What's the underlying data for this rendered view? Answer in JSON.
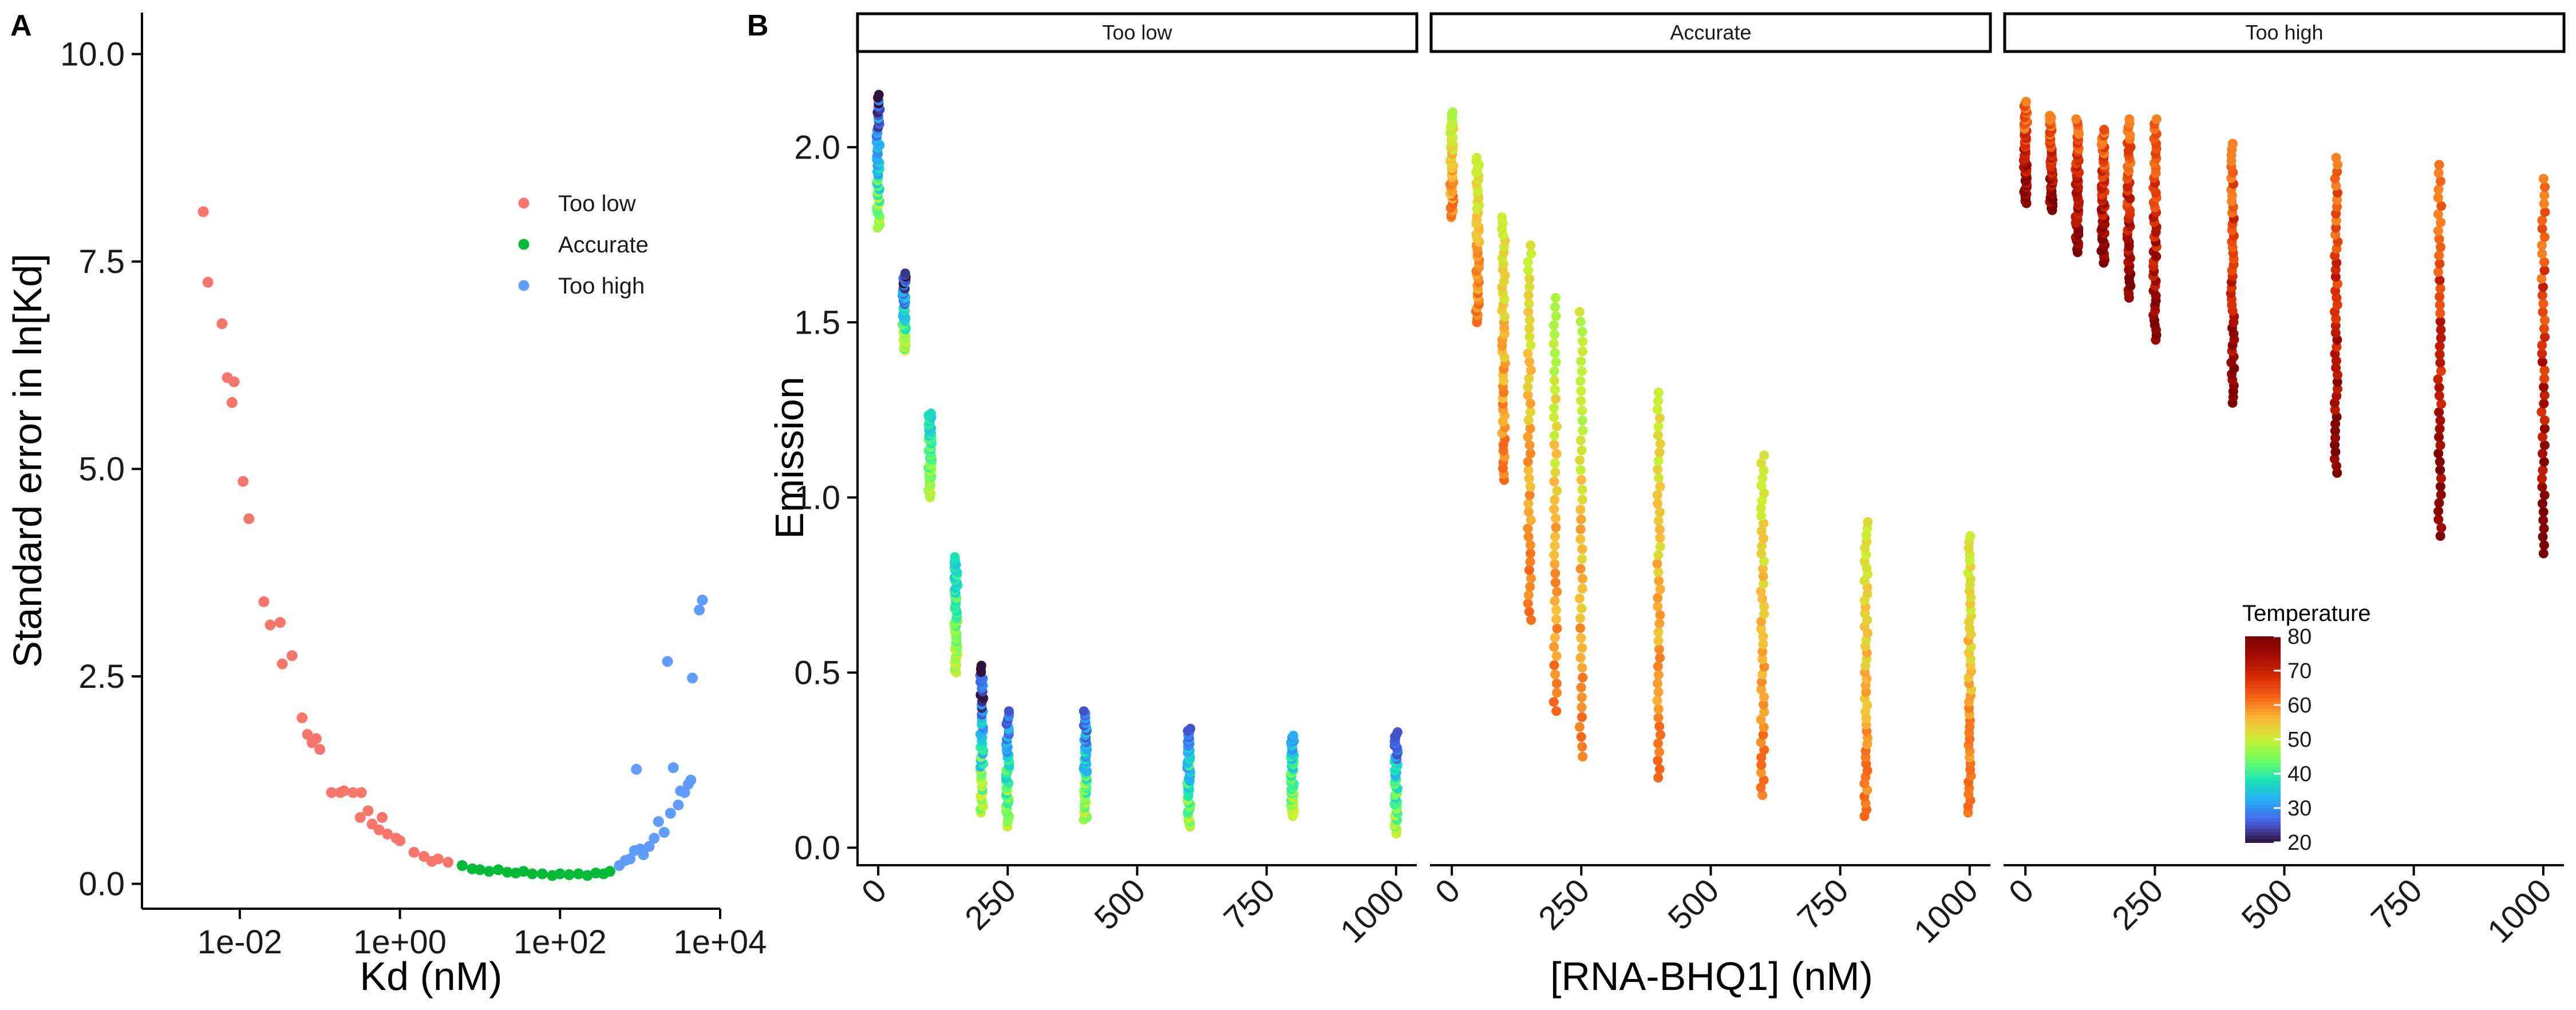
{
  "panel_labels": {
    "a": "A",
    "b": "B"
  },
  "chart_data": [
    {
      "type": "scatter",
      "panel": "A",
      "xlabel": "Kd (nM)",
      "ylabel": "Standard error in ln[Kd]",
      "x_scale": "log10",
      "xlim": [
        0.0006,
        10000
      ],
      "ylim": [
        -0.3,
        10.5
      ],
      "x_ticks": [
        0.01,
        1,
        100,
        10000
      ],
      "x_tick_labels": [
        "1e-02",
        "1e+00",
        "1e+02",
        "1e+04"
      ],
      "y_ticks": [
        0,
        2.5,
        5,
        7.5,
        10
      ],
      "y_tick_labels": [
        "0.0",
        "2.5",
        "5.0",
        "7.5",
        "10.0"
      ],
      "legend_position": "top-right",
      "series": [
        {
          "name": "Too low",
          "color": "#F8766D",
          "points": [
            [
              0.0035,
              8.1
            ],
            [
              0.004,
              7.25
            ],
            [
              0.006,
              6.75
            ],
            [
              0.007,
              6.1
            ],
            [
              0.0085,
              6.05
            ],
            [
              0.008,
              5.8
            ],
            [
              0.011,
              4.85
            ],
            [
              0.013,
              4.4
            ],
            [
              0.02,
              3.4
            ],
            [
              0.024,
              3.12
            ],
            [
              0.032,
              3.15
            ],
            [
              0.034,
              2.65
            ],
            [
              0.045,
              2.75
            ],
            [
              0.06,
              2.0
            ],
            [
              0.07,
              1.8
            ],
            [
              0.08,
              1.7
            ],
            [
              0.09,
              1.75
            ],
            [
              0.1,
              1.62
            ],
            [
              0.14,
              1.1
            ],
            [
              0.18,
              1.1
            ],
            [
              0.2,
              1.12
            ],
            [
              0.26,
              1.1
            ],
            [
              0.33,
              1.1
            ],
            [
              0.32,
              0.8
            ],
            [
              0.4,
              0.88
            ],
            [
              0.45,
              0.72
            ],
            [
              0.55,
              0.65
            ],
            [
              0.6,
              0.8
            ],
            [
              0.7,
              0.6
            ],
            [
              0.9,
              0.55
            ],
            [
              1.0,
              0.52
            ],
            [
              1.5,
              0.38
            ],
            [
              2.0,
              0.33
            ],
            [
              2.5,
              0.27
            ],
            [
              3.0,
              0.3
            ],
            [
              4.0,
              0.26
            ]
          ]
        },
        {
          "name": "Accurate",
          "color": "#00BA38",
          "points": [
            [
              6,
              0.22
            ],
            [
              8,
              0.18
            ],
            [
              10,
              0.17
            ],
            [
              13,
              0.15
            ],
            [
              17,
              0.17
            ],
            [
              22,
              0.14
            ],
            [
              28,
              0.13
            ],
            [
              35,
              0.15
            ],
            [
              45,
              0.12
            ],
            [
              60,
              0.12
            ],
            [
              80,
              0.1
            ],
            [
              100,
              0.12
            ],
            [
              130,
              0.11
            ],
            [
              170,
              0.12
            ],
            [
              220,
              0.1
            ],
            [
              280,
              0.13
            ],
            [
              350,
              0.12
            ],
            [
              420,
              0.15
            ]
          ]
        },
        {
          "name": "Too high",
          "color": "#619CFF",
          "points": [
            [
              550,
              0.22
            ],
            [
              650,
              0.28
            ],
            [
              750,
              0.3
            ],
            [
              850,
              0.4
            ],
            [
              900,
              1.38
            ],
            [
              1000,
              0.42
            ],
            [
              1100,
              0.35
            ],
            [
              1300,
              0.45
            ],
            [
              1500,
              0.55
            ],
            [
              1700,
              0.75
            ],
            [
              2000,
              0.62
            ],
            [
              2200,
              2.68
            ],
            [
              2400,
              0.85
            ],
            [
              2600,
              1.4
            ],
            [
              3000,
              0.95
            ],
            [
              3200,
              1.12
            ],
            [
              3600,
              1.1
            ],
            [
              4000,
              1.2
            ],
            [
              4300,
              1.25
            ],
            [
              4500,
              2.48
            ],
            [
              5500,
              3.3
            ],
            [
              6000,
              3.42
            ]
          ]
        }
      ]
    },
    {
      "type": "scatter",
      "panel": "B",
      "xlabel": "[RNA-BHQ1] (nM)",
      "ylabel": "Emission",
      "xlim": [
        -40,
        1040
      ],
      "ylim": [
        -0.05,
        2.27
      ],
      "x_ticks": [
        0,
        250,
        500,
        750,
        1000
      ],
      "x_tick_labels": [
        "0",
        "250",
        "500",
        "750",
        "1000"
      ],
      "y_ticks": [
        0,
        0.5,
        1,
        1.5,
        2
      ],
      "y_tick_labels": [
        "0.0",
        "0.5",
        "1.0",
        "1.5",
        "2.0"
      ],
      "facets": [
        "Too low",
        "Accurate",
        "Too high"
      ],
      "color_scale": {
        "title": "Temperature",
        "min": 20,
        "max": 80,
        "ticks": [
          20,
          30,
          40,
          50,
          60,
          70,
          80
        ],
        "legend_position": "bottom-right"
      },
      "concentrations": [
        0,
        50,
        100,
        150,
        200,
        250,
        400,
        600,
        800,
        1000
      ],
      "series": [
        {
          "name": "Too low",
          "columns": [
            {
              "x": 0,
              "ymin": 1.77,
              "ymax": 2.15,
              "tmin": 20,
              "tmax": 50
            },
            {
              "x": 50,
              "ymin": 1.42,
              "ymax": 1.64,
              "tmin": 20,
              "tmax": 50
            },
            {
              "x": 100,
              "ymin": 1.0,
              "ymax": 1.24,
              "tmin": 35,
              "tmax": 50
            },
            {
              "x": 150,
              "ymin": 0.5,
              "ymax": 0.83,
              "tmin": 35,
              "tmax": 50
            },
            {
              "x": 200,
              "ymin": 0.1,
              "ymax": 0.52,
              "tmin": 20,
              "tmax": 50
            },
            {
              "x": 250,
              "ymin": 0.06,
              "ymax": 0.39,
              "tmin": 25,
              "tmax": 50
            },
            {
              "x": 400,
              "ymin": 0.08,
              "ymax": 0.39,
              "tmin": 25,
              "tmax": 50
            },
            {
              "x": 600,
              "ymin": 0.06,
              "ymax": 0.34,
              "tmin": 25,
              "tmax": 50
            },
            {
              "x": 800,
              "ymin": 0.09,
              "ymax": 0.32,
              "tmin": 30,
              "tmax": 50
            },
            {
              "x": 1000,
              "ymin": 0.04,
              "ymax": 0.33,
              "tmin": 25,
              "tmax": 50
            }
          ]
        },
        {
          "name": "Accurate",
          "columns": [
            {
              "x": 0,
              "ymin": 1.8,
              "ymax": 2.1,
              "tmin": 48,
              "tmax": 62
            },
            {
              "x": 50,
              "ymin": 1.5,
              "ymax": 1.97,
              "tmin": 50,
              "tmax": 62
            },
            {
              "x": 100,
              "ymin": 1.05,
              "ymax": 1.8,
              "tmin": 50,
              "tmax": 62
            },
            {
              "x": 150,
              "ymin": 0.65,
              "ymax": 1.72,
              "tmin": 50,
              "tmax": 62
            },
            {
              "x": 200,
              "ymin": 0.39,
              "ymax": 1.57,
              "tmin": 48,
              "tmax": 62
            },
            {
              "x": 250,
              "ymin": 0.26,
              "ymax": 1.53,
              "tmin": 48,
              "tmax": 62
            },
            {
              "x": 400,
              "ymin": 0.2,
              "ymax": 1.3,
              "tmin": 50,
              "tmax": 62
            },
            {
              "x": 600,
              "ymin": 0.15,
              "ymax": 1.12,
              "tmin": 50,
              "tmax": 62
            },
            {
              "x": 800,
              "ymin": 0.09,
              "ymax": 0.93,
              "tmin": 50,
              "tmax": 62
            },
            {
              "x": 1000,
              "ymin": 0.1,
              "ymax": 0.89,
              "tmin": 50,
              "tmax": 62
            }
          ]
        },
        {
          "name": "Too high",
          "columns": [
            {
              "x": 0,
              "ymin": 1.84,
              "ymax": 2.13,
              "tmin": 60,
              "tmax": 80
            },
            {
              "x": 50,
              "ymin": 1.82,
              "ymax": 2.09,
              "tmin": 60,
              "tmax": 80
            },
            {
              "x": 100,
              "ymin": 1.7,
              "ymax": 2.08,
              "tmin": 60,
              "tmax": 80
            },
            {
              "x": 150,
              "ymin": 1.67,
              "ymax": 2.05,
              "tmin": 60,
              "tmax": 80
            },
            {
              "x": 200,
              "ymin": 1.57,
              "ymax": 2.08,
              "tmin": 60,
              "tmax": 80
            },
            {
              "x": 250,
              "ymin": 1.45,
              "ymax": 2.08,
              "tmin": 60,
              "tmax": 80
            },
            {
              "x": 400,
              "ymin": 1.27,
              "ymax": 2.01,
              "tmin": 60,
              "tmax": 80
            },
            {
              "x": 600,
              "ymin": 1.07,
              "ymax": 1.97,
              "tmin": 60,
              "tmax": 80
            },
            {
              "x": 800,
              "ymin": 0.89,
              "ymax": 1.95,
              "tmin": 60,
              "tmax": 80
            },
            {
              "x": 1000,
              "ymin": 0.84,
              "ymax": 1.91,
              "tmin": 60,
              "tmax": 80
            }
          ]
        }
      ]
    }
  ]
}
